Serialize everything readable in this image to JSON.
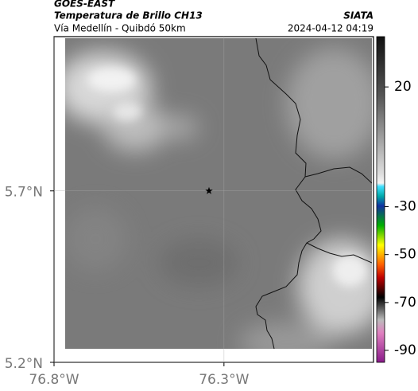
{
  "header": {
    "title": "GOES-EAST",
    "subtitle": "Temperatura de Brillo CH13",
    "region": "Vía Medellín - Quibdó 50km",
    "source": "SIATA",
    "timestamp": "2024-04-12 04:19"
  },
  "map": {
    "xlim": [
      -76.8,
      -75.86
    ],
    "ylim": [
      5.2,
      6.15
    ],
    "xticks": [
      {
        "value": -76.8,
        "label": "76.8°W"
      },
      {
        "value": -76.3,
        "label": "76.3°W"
      }
    ],
    "yticks": [
      {
        "value": 5.2,
        "label": "5.2°N"
      },
      {
        "value": 5.7,
        "label": "5.7°N"
      }
    ],
    "grid": true,
    "marker": {
      "lon": -76.344,
      "lat": 5.7
    }
  },
  "colorbar": {
    "clim": [
      -95,
      41
    ],
    "ticks": [
      20,
      -30,
      -50,
      -70,
      -90
    ]
  }
}
